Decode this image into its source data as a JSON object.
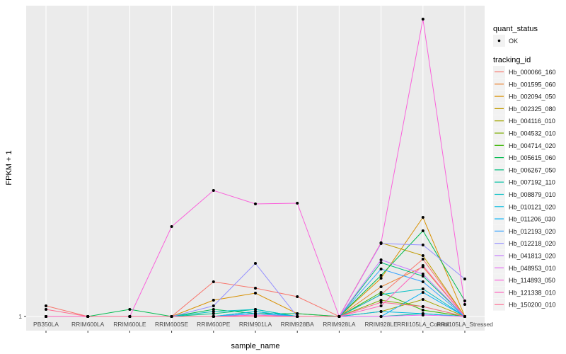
{
  "chart_data": {
    "type": "line",
    "title": "",
    "xlabel": "sample_name",
    "ylabel": "FPKM + 1",
    "y_ticks": [
      "1"
    ],
    "ylim": [
      -1.0,
      44.9
    ],
    "grid": true,
    "legend_position": "right",
    "categories": [
      "PB350LA",
      "RRIM600LA",
      "RRIM600LE",
      "RRIM600SE",
      "RRIM600PE",
      "RRIM901LA",
      "RRIM928BA",
      "RRIM928LA",
      "RRIM928LE",
      "RRII105LA_Control",
      "RRII105LA_Stressed"
    ],
    "point_legend": {
      "title": "quant_status",
      "entries": [
        "OK"
      ]
    },
    "line_legend_title": "tracking_id",
    "series": [
      {
        "name": "Hb_000066_160",
        "color": "#F8766D",
        "values": [
          2.5,
          1,
          1,
          1,
          5.9,
          5.0,
          3.8,
          1,
          4.1,
          9.1,
          1
        ]
      },
      {
        "name": "Hb_001595_060",
        "color": "#EA8331",
        "values": [
          1,
          1,
          1,
          1,
          1,
          1,
          1,
          1,
          5.2,
          8.0,
          1
        ]
      },
      {
        "name": "Hb_002094_050",
        "color": "#D89000",
        "values": [
          1,
          1,
          1,
          1,
          3.3,
          4.3,
          1.4,
          1,
          6.4,
          15.0,
          1
        ]
      },
      {
        "name": "Hb_002325_080",
        "color": "#C09B00",
        "values": [
          1,
          1,
          1,
          1,
          1,
          1,
          1,
          1,
          11.4,
          9.6,
          1
        ]
      },
      {
        "name": "Hb_004116_010",
        "color": "#A3A500",
        "values": [
          1,
          1,
          1,
          1,
          1,
          1,
          1,
          1,
          1.7,
          3.4,
          1
        ]
      },
      {
        "name": "Hb_004532_010",
        "color": "#7CAE00",
        "values": [
          1,
          1,
          1,
          1,
          1,
          1,
          1,
          1,
          3.3,
          2.4,
          1
        ]
      },
      {
        "name": "Hb_004714_020",
        "color": "#39B600",
        "values": [
          1,
          1,
          1,
          1,
          1,
          1,
          1,
          1,
          4.4,
          1.9,
          1
        ]
      },
      {
        "name": "Hb_005615_060",
        "color": "#00BB4E",
        "values": [
          1,
          1,
          2.0,
          1,
          2.0,
          1.4,
          1.4,
          1,
          6.8,
          13.1,
          3.2
        ]
      },
      {
        "name": "Hb_006267_050",
        "color": "#00BF7D",
        "values": [
          1,
          1,
          1,
          1,
          1.4,
          2.0,
          1,
          1,
          8.6,
          6.7,
          1
        ]
      },
      {
        "name": "Hb_007192_110",
        "color": "#00C1A3",
        "values": [
          1,
          1,
          1,
          1,
          1,
          1.7,
          1,
          1,
          1,
          1.4,
          1
        ]
      },
      {
        "name": "Hb_008879_010",
        "color": "#00BFC4",
        "values": [
          1,
          1,
          1,
          1,
          1.7,
          2.0,
          1,
          1,
          4.1,
          4.9,
          1
        ]
      },
      {
        "name": "Hb_010121_020",
        "color": "#00BAE0",
        "values": [
          1,
          1,
          1,
          1,
          1,
          1.7,
          1,
          1,
          1.7,
          1.4,
          1
        ]
      },
      {
        "name": "Hb_011206_030",
        "color": "#00B0F6",
        "values": [
          1,
          1,
          1,
          1,
          1,
          1.4,
          1,
          1,
          1,
          4.4,
          1
        ]
      },
      {
        "name": "Hb_012193_020",
        "color": "#35A2FF",
        "values": [
          1,
          1,
          1,
          1,
          1,
          1.4,
          1,
          1,
          7.7,
          5.9,
          1
        ]
      },
      {
        "name": "Hb_012218_020",
        "color": "#9590FF",
        "values": [
          1,
          1,
          1,
          1,
          2.5,
          8.5,
          1,
          1,
          11.3,
          11.1,
          6.3
        ]
      },
      {
        "name": "Hb_041813_020",
        "color": "#C77CFF",
        "values": [
          1,
          1,
          1,
          1,
          1,
          1,
          1,
          1,
          9.0,
          7.0,
          1
        ]
      },
      {
        "name": "Hb_048953_010",
        "color": "#E76BF3",
        "values": [
          1,
          1,
          1,
          1,
          1,
          1,
          1,
          1,
          1,
          1.2,
          1
        ]
      },
      {
        "name": "Hb_114893_050",
        "color": "#FA62DB",
        "values": [
          1,
          1,
          1,
          13.7,
          18.8,
          16.9,
          17.0,
          1,
          11.4,
          43.0,
          2.7
        ]
      },
      {
        "name": "Hb_121338_010",
        "color": "#FF62BC",
        "values": [
          1,
          1,
          1,
          1,
          1,
          1.2,
          1,
          1,
          2.5,
          8.2,
          1
        ]
      },
      {
        "name": "Hb_150200_010",
        "color": "#FF6C91",
        "values": [
          2.0,
          1,
          1,
          1,
          1,
          1,
          1,
          1,
          3.0,
          2.4,
          1
        ]
      }
    ]
  }
}
